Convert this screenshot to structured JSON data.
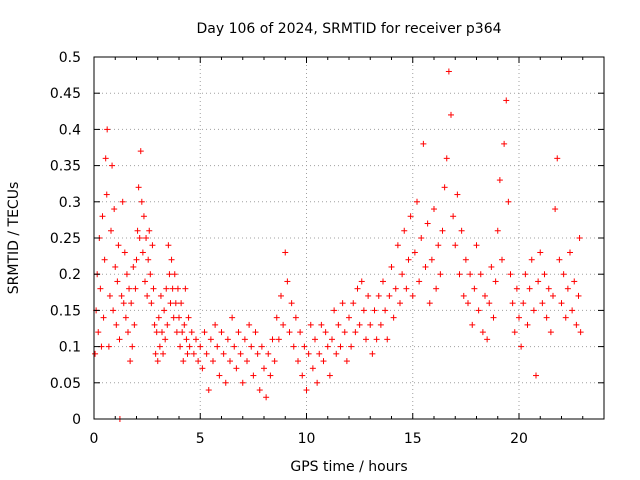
{
  "chart_data": {
    "type": "scatter",
    "title": "Day 106 of 2024, SRMTID for receiver p364",
    "xlabel": "GPS time / hours",
    "ylabel": "SRMTID / TECUs",
    "xlim": [
      0,
      24
    ],
    "ylim": [
      0,
      0.5
    ],
    "xticks": [
      0,
      5,
      10,
      15,
      20
    ],
    "xtick_labels": [
      "0",
      "5",
      "10",
      "15",
      "20"
    ],
    "yticks": [
      0,
      0.05,
      0.1,
      0.15,
      0.2,
      0.25,
      0.3,
      0.35,
      0.4,
      0.45,
      0.5
    ],
    "ytick_labels": [
      "0",
      "0.05",
      "0.1",
      "0.15",
      "0.2",
      "0.25",
      "0.3",
      "0.35",
      "0.4",
      "0.45",
      "0.5"
    ],
    "grid": true,
    "marker": "+",
    "color": "#ff0000",
    "series": [
      {
        "name": "SRMTID",
        "points": [
          [
            0.05,
            0.09
          ],
          [
            0.1,
            0.15
          ],
          [
            0.15,
            0.2
          ],
          [
            0.2,
            0.12
          ],
          [
            0.25,
            0.25
          ],
          [
            0.3,
            0.18
          ],
          [
            0.35,
            0.1
          ],
          [
            0.4,
            0.28
          ],
          [
            0.45,
            0.14
          ],
          [
            0.5,
            0.22
          ],
          [
            0.55,
            0.36
          ],
          [
            0.6,
            0.31
          ],
          [
            0.62,
            0.4
          ],
          [
            0.7,
            0.1
          ],
          [
            0.75,
            0.17
          ],
          [
            0.8,
            0.26
          ],
          [
            0.85,
            0.35
          ],
          [
            0.9,
            0.15
          ],
          [
            0.95,
            0.29
          ],
          [
            1.0,
            0.21
          ],
          [
            1.05,
            0.13
          ],
          [
            1.1,
            0.19
          ],
          [
            1.15,
            0.24
          ],
          [
            1.2,
            0.11
          ],
          [
            1.22,
            0.0
          ],
          [
            1.3,
            0.17
          ],
          [
            1.35,
            0.3
          ],
          [
            1.4,
            0.16
          ],
          [
            1.45,
            0.23
          ],
          [
            1.5,
            0.14
          ],
          [
            1.55,
            0.2
          ],
          [
            1.6,
            0.12
          ],
          [
            1.65,
            0.18
          ],
          [
            1.7,
            0.08
          ],
          [
            1.75,
            0.16
          ],
          [
            1.8,
            0.1
          ],
          [
            1.85,
            0.21
          ],
          [
            1.9,
            0.13
          ],
          [
            1.95,
            0.18
          ],
          [
            2.0,
            0.22
          ],
          [
            2.05,
            0.26
          ],
          [
            2.1,
            0.32
          ],
          [
            2.15,
            0.25
          ],
          [
            2.2,
            0.37
          ],
          [
            2.25,
            0.3
          ],
          [
            2.3,
            0.23
          ],
          [
            2.35,
            0.28
          ],
          [
            2.4,
            0.19
          ],
          [
            2.45,
            0.25
          ],
          [
            2.5,
            0.17
          ],
          [
            2.55,
            0.22
          ],
          [
            2.6,
            0.26
          ],
          [
            2.65,
            0.2
          ],
          [
            2.7,
            0.16
          ],
          [
            2.75,
            0.24
          ],
          [
            2.8,
            0.18
          ],
          [
            2.85,
            0.13
          ],
          [
            2.9,
            0.09
          ],
          [
            2.95,
            0.12
          ],
          [
            3.0,
            0.08
          ],
          [
            3.05,
            0.14
          ],
          [
            3.1,
            0.1
          ],
          [
            3.15,
            0.17
          ],
          [
            3.2,
            0.12
          ],
          [
            3.25,
            0.09
          ],
          [
            3.3,
            0.15
          ],
          [
            3.35,
            0.11
          ],
          [
            3.4,
            0.18
          ],
          [
            3.45,
            0.13
          ],
          [
            3.5,
            0.24
          ],
          [
            3.55,
            0.2
          ],
          [
            3.6,
            0.16
          ],
          [
            3.65,
            0.22
          ],
          [
            3.7,
            0.18
          ],
          [
            3.75,
            0.14
          ],
          [
            3.8,
            0.2
          ],
          [
            3.85,
            0.16
          ],
          [
            3.9,
            0.12
          ],
          [
            3.95,
            0.18
          ],
          [
            4.0,
            0.14
          ],
          [
            4.05,
            0.1
          ],
          [
            4.1,
            0.16
          ],
          [
            4.15,
            0.12
          ],
          [
            4.2,
            0.08
          ],
          [
            4.25,
            0.13
          ],
          [
            4.3,
            0.18
          ],
          [
            4.35,
            0.11
          ],
          [
            4.4,
            0.09
          ],
          [
            4.45,
            0.14
          ],
          [
            4.5,
            0.1
          ],
          [
            4.6,
            0.12
          ],
          [
            4.7,
            0.09
          ],
          [
            4.8,
            0.11
          ],
          [
            4.9,
            0.08
          ],
          [
            5.0,
            0.1
          ],
          [
            5.1,
            0.07
          ],
          [
            5.2,
            0.12
          ],
          [
            5.3,
            0.09
          ],
          [
            5.4,
            0.04
          ],
          [
            5.5,
            0.11
          ],
          [
            5.6,
            0.08
          ],
          [
            5.7,
            0.13
          ],
          [
            5.8,
            0.1
          ],
          [
            5.9,
            0.06
          ],
          [
            6.0,
            0.12
          ],
          [
            6.1,
            0.09
          ],
          [
            6.2,
            0.05
          ],
          [
            6.3,
            0.11
          ],
          [
            6.4,
            0.08
          ],
          [
            6.5,
            0.14
          ],
          [
            6.6,
            0.1
          ],
          [
            6.7,
            0.07
          ],
          [
            6.8,
            0.12
          ],
          [
            6.9,
            0.09
          ],
          [
            7.0,
            0.05
          ],
          [
            7.1,
            0.11
          ],
          [
            7.2,
            0.08
          ],
          [
            7.3,
            0.13
          ],
          [
            7.4,
            0.1
          ],
          [
            7.5,
            0.06
          ],
          [
            7.6,
            0.12
          ],
          [
            7.7,
            0.09
          ],
          [
            7.8,
            0.04
          ],
          [
            7.9,
            0.1
          ],
          [
            8.0,
            0.07
          ],
          [
            8.1,
            0.03
          ],
          [
            8.2,
            0.09
          ],
          [
            8.3,
            0.06
          ],
          [
            8.4,
            0.11
          ],
          [
            8.5,
            0.08
          ],
          [
            8.6,
            0.14
          ],
          [
            8.7,
            0.11
          ],
          [
            8.8,
            0.17
          ],
          [
            8.9,
            0.13
          ],
          [
            9.0,
            0.23
          ],
          [
            9.1,
            0.19
          ],
          [
            9.2,
            0.12
          ],
          [
            9.3,
            0.16
          ],
          [
            9.4,
            0.1
          ],
          [
            9.5,
            0.14
          ],
          [
            9.6,
            0.08
          ],
          [
            9.7,
            0.12
          ],
          [
            9.8,
            0.06
          ],
          [
            9.9,
            0.1
          ],
          [
            10.0,
            0.04
          ],
          [
            10.1,
            0.09
          ],
          [
            10.2,
            0.13
          ],
          [
            10.3,
            0.07
          ],
          [
            10.4,
            0.11
          ],
          [
            10.5,
            0.05
          ],
          [
            10.6,
            0.09
          ],
          [
            10.7,
            0.13
          ],
          [
            10.8,
            0.08
          ],
          [
            10.9,
            0.12
          ],
          [
            11.0,
            0.1
          ],
          [
            11.1,
            0.06
          ],
          [
            11.2,
            0.11
          ],
          [
            11.3,
            0.15
          ],
          [
            11.4,
            0.09
          ],
          [
            11.5,
            0.13
          ],
          [
            11.6,
            0.1
          ],
          [
            11.7,
            0.16
          ],
          [
            11.8,
            0.12
          ],
          [
            11.9,
            0.08
          ],
          [
            12.0,
            0.14
          ],
          [
            12.1,
            0.1
          ],
          [
            12.2,
            0.16
          ],
          [
            12.3,
            0.12
          ],
          [
            12.4,
            0.18
          ],
          [
            12.5,
            0.13
          ],
          [
            12.6,
            0.19
          ],
          [
            12.7,
            0.15
          ],
          [
            12.8,
            0.11
          ],
          [
            12.9,
            0.17
          ],
          [
            13.0,
            0.13
          ],
          [
            13.1,
            0.09
          ],
          [
            13.2,
            0.15
          ],
          [
            13.3,
            0.11
          ],
          [
            13.4,
            0.17
          ],
          [
            13.5,
            0.13
          ],
          [
            13.6,
            0.19
          ],
          [
            13.7,
            0.15
          ],
          [
            13.8,
            0.11
          ],
          [
            13.9,
            0.17
          ],
          [
            14.0,
            0.21
          ],
          [
            14.1,
            0.14
          ],
          [
            14.2,
            0.18
          ],
          [
            14.3,
            0.24
          ],
          [
            14.4,
            0.16
          ],
          [
            14.5,
            0.2
          ],
          [
            14.6,
            0.26
          ],
          [
            14.7,
            0.18
          ],
          [
            14.8,
            0.22
          ],
          [
            14.9,
            0.28
          ],
          [
            15.0,
            0.17
          ],
          [
            15.1,
            0.23
          ],
          [
            15.2,
            0.3
          ],
          [
            15.3,
            0.19
          ],
          [
            15.4,
            0.25
          ],
          [
            15.5,
            0.38
          ],
          [
            15.6,
            0.21
          ],
          [
            15.7,
            0.27
          ],
          [
            15.8,
            0.16
          ],
          [
            15.9,
            0.22
          ],
          [
            16.0,
            0.29
          ],
          [
            16.1,
            0.18
          ],
          [
            16.2,
            0.24
          ],
          [
            16.3,
            0.2
          ],
          [
            16.4,
            0.26
          ],
          [
            16.5,
            0.32
          ],
          [
            16.6,
            0.36
          ],
          [
            16.7,
            0.48
          ],
          [
            16.8,
            0.42
          ],
          [
            16.9,
            0.28
          ],
          [
            17.0,
            0.24
          ],
          [
            17.1,
            0.31
          ],
          [
            17.2,
            0.2
          ],
          [
            17.3,
            0.26
          ],
          [
            17.4,
            0.17
          ],
          [
            17.5,
            0.22
          ],
          [
            17.6,
            0.16
          ],
          [
            17.7,
            0.2
          ],
          [
            17.8,
            0.13
          ],
          [
            17.9,
            0.18
          ],
          [
            18.0,
            0.24
          ],
          [
            18.1,
            0.15
          ],
          [
            18.2,
            0.2
          ],
          [
            18.3,
            0.12
          ],
          [
            18.4,
            0.17
          ],
          [
            18.5,
            0.11
          ],
          [
            18.6,
            0.16
          ],
          [
            18.7,
            0.21
          ],
          [
            18.8,
            0.14
          ],
          [
            18.9,
            0.19
          ],
          [
            19.0,
            0.26
          ],
          [
            19.1,
            0.33
          ],
          [
            19.2,
            0.22
          ],
          [
            19.3,
            0.38
          ],
          [
            19.4,
            0.44
          ],
          [
            19.5,
            0.3
          ],
          [
            19.6,
            0.2
          ],
          [
            19.7,
            0.16
          ],
          [
            19.8,
            0.12
          ],
          [
            19.9,
            0.18
          ],
          [
            20.0,
            0.14
          ],
          [
            20.1,
            0.1
          ],
          [
            20.2,
            0.16
          ],
          [
            20.3,
            0.2
          ],
          [
            20.4,
            0.13
          ],
          [
            20.5,
            0.18
          ],
          [
            20.6,
            0.22
          ],
          [
            20.7,
            0.15
          ],
          [
            20.8,
            0.06
          ],
          [
            20.9,
            0.19
          ],
          [
            21.0,
            0.23
          ],
          [
            21.1,
            0.16
          ],
          [
            21.2,
            0.2
          ],
          [
            21.3,
            0.14
          ],
          [
            21.4,
            0.18
          ],
          [
            21.5,
            0.12
          ],
          [
            21.6,
            0.17
          ],
          [
            21.7,
            0.29
          ],
          [
            21.8,
            0.36
          ],
          [
            21.9,
            0.22
          ],
          [
            22.0,
            0.16
          ],
          [
            22.1,
            0.2
          ],
          [
            22.2,
            0.14
          ],
          [
            22.3,
            0.18
          ],
          [
            22.4,
            0.23
          ],
          [
            22.5,
            0.15
          ],
          [
            22.6,
            0.19
          ],
          [
            22.7,
            0.13
          ],
          [
            22.8,
            0.17
          ],
          [
            22.85,
            0.25
          ],
          [
            22.9,
            0.12
          ]
        ]
      }
    ]
  }
}
